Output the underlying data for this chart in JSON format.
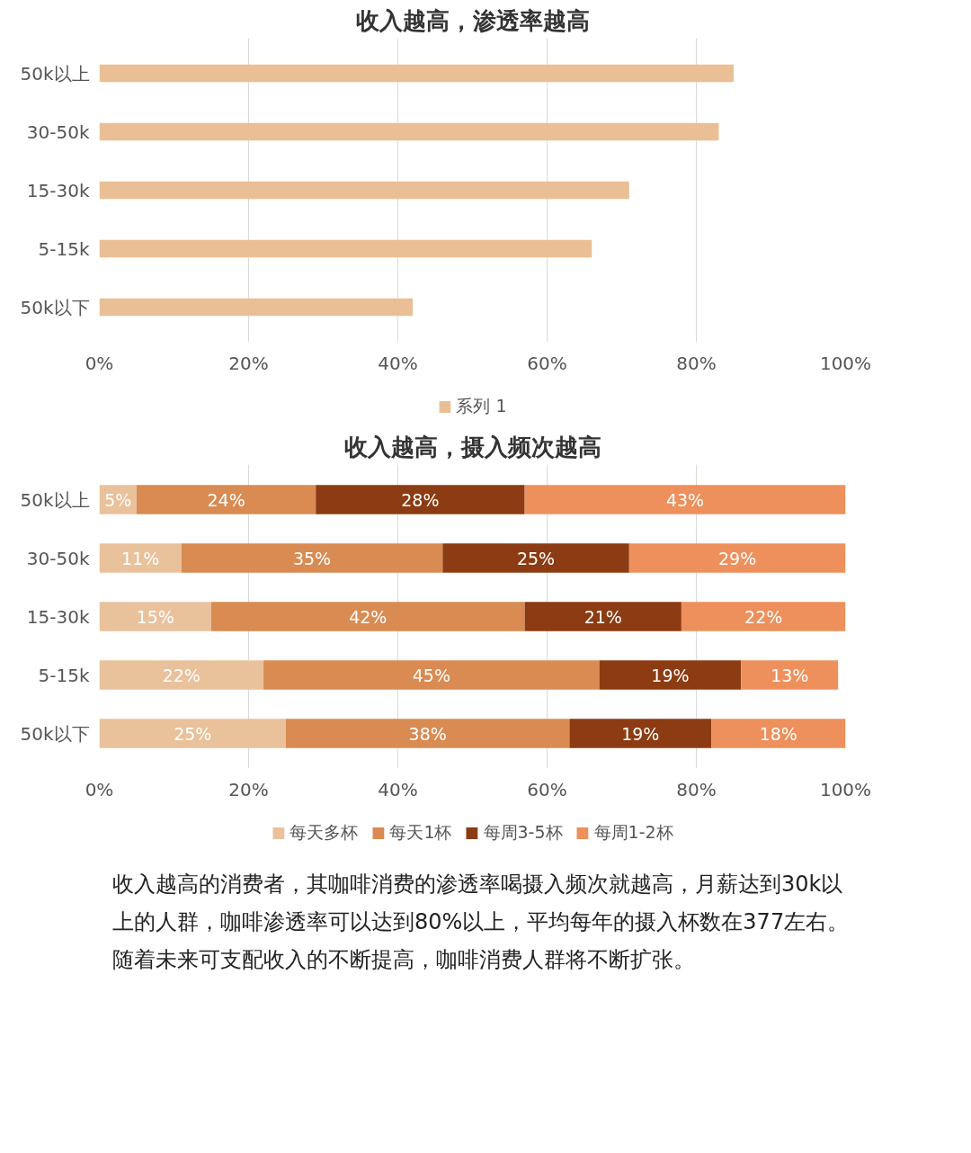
{
  "chart_data": [
    {
      "type": "bar",
      "orientation": "horizontal",
      "title": "收入越高，渗透率越高",
      "categories": [
        "50k以上",
        "30-50k",
        "15-30k",
        "5-15k",
        "50k以下"
      ],
      "series": [
        {
          "name": "系列 1",
          "color": "#eabf95",
          "values": [
            85,
            83,
            71,
            66,
            42
          ]
        }
      ],
      "xlim": [
        0,
        100
      ],
      "xticks": [
        {
          "value": 0,
          "label": "0%"
        },
        {
          "value": 20,
          "label": "20%"
        },
        {
          "value": 40,
          "label": "40%"
        },
        {
          "value": 60,
          "label": "60%"
        },
        {
          "value": 80,
          "label": "80%"
        },
        {
          "value": 100,
          "label": "100%"
        }
      ],
      "grid": "x",
      "legend": "bottom"
    },
    {
      "type": "bar",
      "orientation": "horizontal",
      "stacked": true,
      "title": "收入越高，摄入频次越高",
      "categories": [
        "50k以上",
        "30-50k",
        "15-30k",
        "5-15k",
        "50k以下"
      ],
      "series": [
        {
          "name": "每天多杯",
          "color": "#e9c19b",
          "values": [
            5,
            11,
            15,
            22,
            25
          ],
          "value_labels": [
            "5%",
            "11%",
            "15%",
            "22%",
            "25%"
          ]
        },
        {
          "name": "每天1杯",
          "color": "#d98b52",
          "values": [
            24,
            35,
            42,
            45,
            38
          ],
          "value_labels": [
            "24%",
            "35%",
            "42%",
            "45%",
            "38%"
          ]
        },
        {
          "name": "每周3-5杯",
          "color": "#8c3b12",
          "values": [
            28,
            25,
            21,
            19,
            19
          ],
          "value_labels": [
            "28%",
            "25%",
            "21%",
            "19%",
            "19%"
          ]
        },
        {
          "name": "每周1-2杯",
          "color": "#ee905c",
          "values": [
            43,
            29,
            22,
            13,
            18
          ],
          "value_labels": [
            "43%",
            "29%",
            "22%",
            "13%",
            "18%"
          ]
        }
      ],
      "xlim": [
        0,
        100
      ],
      "xticks": [
        {
          "value": 0,
          "label": "0%"
        },
        {
          "value": 20,
          "label": "20%"
        },
        {
          "value": 40,
          "label": "40%"
        },
        {
          "value": 60,
          "label": "60%"
        },
        {
          "value": 80,
          "label": "80%"
        },
        {
          "value": 100,
          "label": "100%"
        }
      ],
      "grid": "x",
      "legend": "bottom",
      "annotations": [
        "收入越高的消费者，其咖啡消费的渗透率喝摄入频次就越高，月薪达到30k以上的人群，咖啡渗透率可以达到80%以上，平均每年的摄入杯数在377左右。随着未来可支配收入的不断提高，咖啡消费人群将不断扩张。"
      ]
    }
  ]
}
